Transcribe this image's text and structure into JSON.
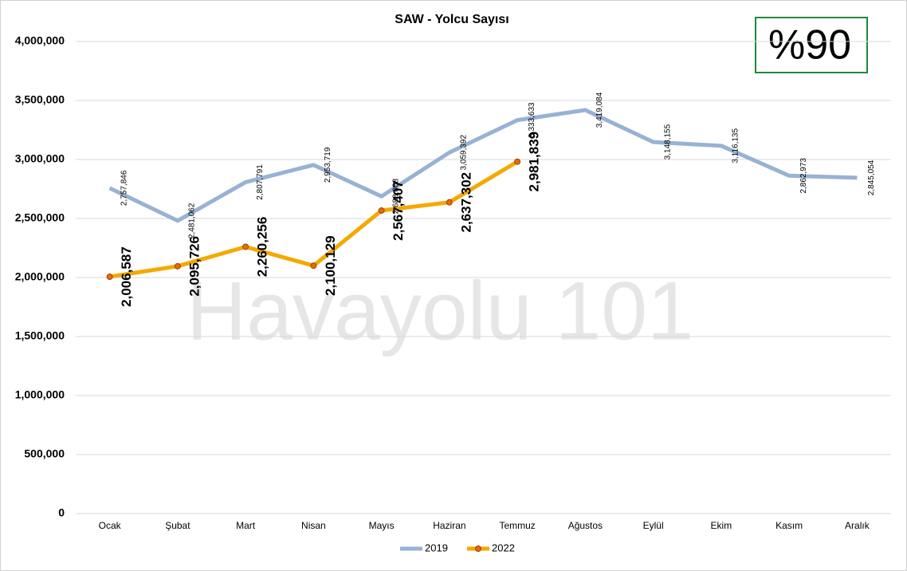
{
  "chart_data": {
    "type": "line",
    "title": "SAW - Yolcu Sayısı",
    "categories": [
      "Ocak",
      "Şubat",
      "Mart",
      "Nisan",
      "Mayıs",
      "Haziran",
      "Temmuz",
      "Ağustos",
      "Eylül",
      "Ekim",
      "Kasım",
      "Aralık"
    ],
    "series": [
      {
        "name": "2019",
        "color": "#98b2d5",
        "values": [
          2757846,
          2481062,
          2807791,
          2953719,
          2688008,
          3059392,
          3333633,
          3419084,
          3148155,
          3116135,
          2862973,
          2845054
        ],
        "value_labels": [
          "2,757,846",
          "2,481,062",
          "2,807,791",
          "2,953,719",
          "2,688,008",
          "3,059,392",
          "3,333,633",
          "3,419,084",
          "3,148,155",
          "3,116,135",
          "2,862,973",
          "2,845,054"
        ]
      },
      {
        "name": "2022",
        "color": "#f4a900",
        "values": [
          2006587,
          2095726,
          2260256,
          2100129,
          2567407,
          2637302,
          2981839,
          null,
          null,
          null,
          null,
          null
        ],
        "value_labels": [
          "2,006,587",
          "2,095,726",
          "2,260,256",
          "2,100,129",
          "2,567,407",
          "2,637,302",
          "2,981,839",
          null,
          null,
          null,
          null,
          null
        ]
      }
    ],
    "ylim": [
      0,
      4000000
    ],
    "yticks": [
      0,
      {
        "value": 500000,
        "label": "500,000"
      },
      {
        "value": 1000000,
        "label": "1,000,000"
      },
      {
        "value": 1500000,
        "label": "1,500,000"
      },
      {
        "value": 2000000,
        "label": "2,000,000"
      },
      {
        "value": 2500000,
        "label": "2,500,000"
      },
      {
        "value": 3000000,
        "label": "3,000,000"
      },
      {
        "value": 3500000,
        "label": "3,500,000"
      },
      {
        "value": 4000000,
        "label": "4,000,000"
      }
    ],
    "grid": true,
    "legend": "bottom",
    "annotations": [
      "Havayolu 101",
      "%90"
    ]
  }
}
